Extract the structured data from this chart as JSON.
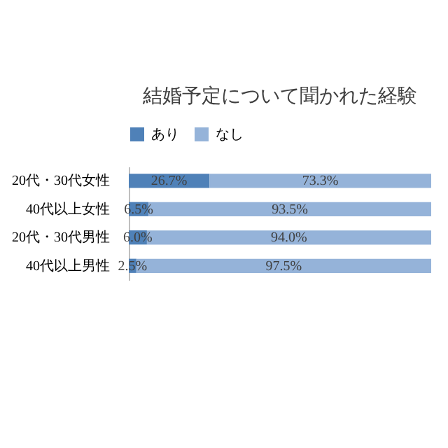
{
  "chart_data": {
    "type": "bar",
    "orientation": "horizontal",
    "stacked": true,
    "title": "結婚予定について聞かれた経験",
    "categories": [
      "20代・30代女性",
      "40代以上女性",
      "20代・30代男性",
      "40代以上男性"
    ],
    "series": [
      {
        "name": "あり",
        "color": "#4f81b8",
        "values": [
          26.7,
          6.5,
          6.0,
          2.5
        ],
        "value_labels": [
          "26.7%",
          "6.5%",
          "6.0%",
          "2.5%"
        ]
      },
      {
        "name": "なし",
        "color": "#95b3d9",
        "values": [
          73.3,
          93.5,
          94.0,
          97.5
        ],
        "value_labels": [
          "73.3%",
          "93.5%",
          "94.0%",
          "97.5%"
        ]
      }
    ],
    "xlim": [
      0,
      100
    ],
    "legend": "top",
    "grid": false
  }
}
